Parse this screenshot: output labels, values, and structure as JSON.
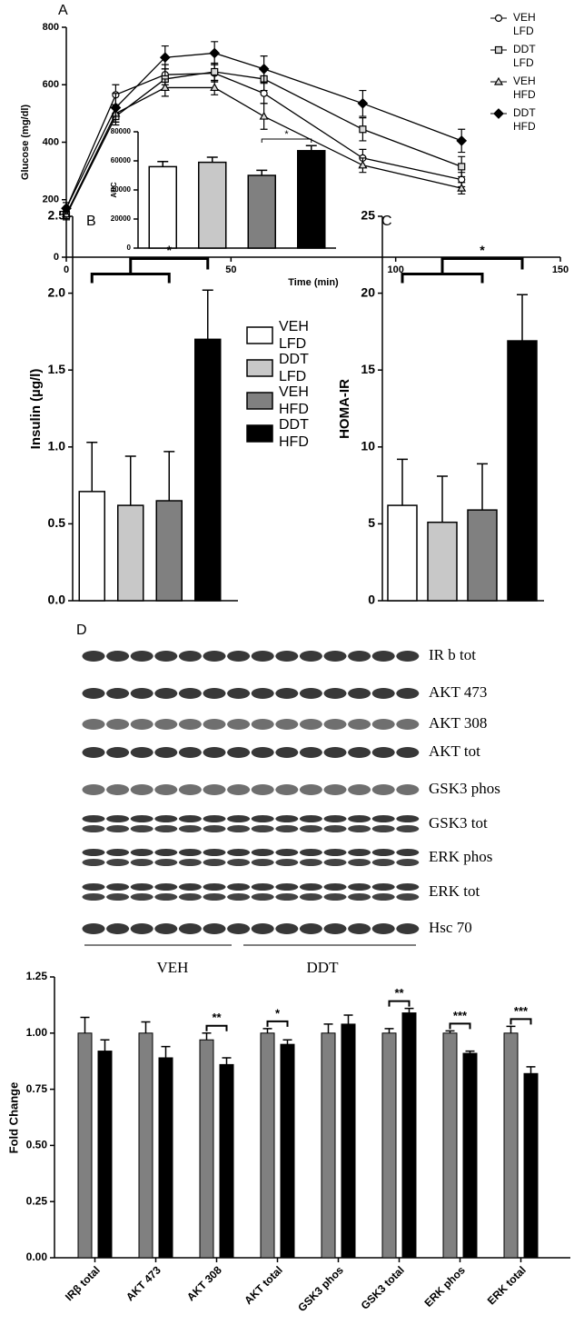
{
  "chart_data": [
    {
      "type": "line",
      "panel": "A",
      "x": [
        0,
        15,
        30,
        45,
        60,
        90,
        120
      ],
      "xlabel": "Time (min)",
      "ylabel": "Glucose (mg/dl)",
      "xlim": [
        0,
        150
      ],
      "xticks": [
        0,
        50,
        100,
        150
      ],
      "ylim": [
        0,
        800
      ],
      "yticks": [
        0,
        200,
        400,
        600,
        800
      ],
      "legend": "right",
      "series": [
        {
          "name": "VEH LFD",
          "color": "#000000",
          "marker": "circle",
          "marker_fill": "#ffffff",
          "values": [
            170,
            565,
            635,
            640,
            570,
            345,
            270
          ],
          "errors": [
            20,
            35,
            35,
            30,
            35,
            30,
            25
          ]
        },
        {
          "name": "DDT LFD",
          "color": "#000000",
          "marker": "square",
          "marker_fill": "#d9d9d9",
          "values": [
            145,
            490,
            620,
            645,
            620,
            445,
            315
          ],
          "errors": [
            15,
            30,
            35,
            30,
            40,
            40,
            35
          ]
        },
        {
          "name": "VEH HFD",
          "color": "#000000",
          "marker": "triangle",
          "marker_fill": "#d9d9d9",
          "values": [
            150,
            500,
            590,
            590,
            490,
            320,
            240
          ],
          "errors": [
            15,
            30,
            30,
            25,
            45,
            25,
            20
          ]
        },
        {
          "name": "DDT HFD",
          "color": "#000000",
          "marker": "diamond",
          "marker_fill": "#000000",
          "values": [
            170,
            520,
            695,
            710,
            655,
            535,
            405
          ],
          "errors": [
            20,
            50,
            40,
            40,
            45,
            45,
            40
          ]
        }
      ]
    },
    {
      "type": "bar",
      "ylabel": "AUC",
      "categories": [
        null,
        null,
        null,
        null
      ],
      "values": [
        56000,
        59000,
        50000,
        67000
      ],
      "errors": [
        3500,
        3500,
        3500,
        3500
      ],
      "colors": [
        "#ffffff",
        "#c8c8c8",
        "#808080",
        "#000000"
      ],
      "ylim": [
        0,
        80000
      ],
      "yticks": [
        0,
        20000,
        40000,
        60000,
        80000
      ],
      "annotation": "*"
    },
    {
      "type": "bar",
      "panel": "B",
      "ylabel": "Insulin (µg/l)",
      "categories": [
        null,
        null,
        null,
        null
      ],
      "values": [
        0.71,
        0.62,
        0.65,
        1.7
      ],
      "errors": [
        0.32,
        0.32,
        0.32,
        0.32
      ],
      "colors": [
        "#ffffff",
        "#c8c8c8",
        "#808080",
        "#000000"
      ],
      "ylim": [
        0,
        2.5
      ],
      "yticks": [
        {
          "value": 0,
          "label": "0.0"
        },
        0.5,
        {
          "value": 1,
          "label": "1.0"
        },
        1.5,
        {
          "value": 2,
          "label": "2.0"
        },
        2.5
      ],
      "annotation": "*",
      "legend": {
        "position": "right",
        "labels": [
          "VEH LFD",
          "DDT LFD",
          "VEH HFD",
          "DDT HFD"
        ]
      }
    },
    {
      "type": "bar",
      "panel": "C",
      "ylabel": "HOMA-IR",
      "categories": [
        null,
        null,
        null,
        null
      ],
      "values": [
        6.2,
        5.1,
        5.9,
        16.9
      ],
      "errors": [
        3.0,
        3.0,
        3.0,
        3.0
      ],
      "colors": [
        "#ffffff",
        "#c8c8c8",
        "#808080",
        "#000000"
      ],
      "ylim": [
        0,
        25
      ],
      "yticks": [
        0,
        5,
        10,
        15,
        20,
        25
      ],
      "annotation": "*"
    },
    {
      "type": "grouped-bar",
      "ylabel": "Fold Change",
      "categories": [
        "IRβ total",
        "AKT 473",
        "AKT 308",
        "AKT total",
        "GSK3 phos",
        "GSK3 total",
        "ERK phos",
        "ERK total"
      ],
      "series": [
        {
          "color": "#808080",
          "values": [
            1.0,
            1.0,
            0.97,
            1.0,
            1.0,
            1.0,
            1.0,
            1.0
          ],
          "errors": [
            0.07,
            0.05,
            0.03,
            0.02,
            0.04,
            0.02,
            0.01,
            0.03
          ]
        },
        {
          "color": "#000000",
          "values": [
            0.92,
            0.89,
            0.86,
            0.95,
            1.04,
            1.09,
            0.91,
            0.82
          ],
          "errors": [
            0.05,
            0.05,
            0.03,
            0.02,
            0.04,
            0.02,
            0.01,
            0.03
          ]
        }
      ],
      "significance": [
        null,
        null,
        "**",
        "*",
        null,
        "**",
        "***",
        "***"
      ],
      "ylim": [
        0,
        1.25
      ],
      "yticks": [
        {
          "value": 0,
          "label": "0.00"
        },
        {
          "value": 0.25,
          "label": "0.25"
        },
        {
          "value": 0.5,
          "label": "0.50"
        },
        {
          "value": 0.75,
          "label": "0.75"
        },
        {
          "value": 1,
          "label": "1.00"
        },
        {
          "value": 1.25,
          "label": "1.25"
        }
      ]
    }
  ],
  "blot": {
    "panel": "D",
    "labels": [
      "IR b tot",
      "AKT 473",
      "AKT 308",
      "AKT tot",
      "GSK3 phos",
      "GSK3 tot",
      "ERK phos",
      "ERK tot",
      "Hsc 70"
    ],
    "groups": [
      "VEH",
      "DDT"
    ]
  }
}
